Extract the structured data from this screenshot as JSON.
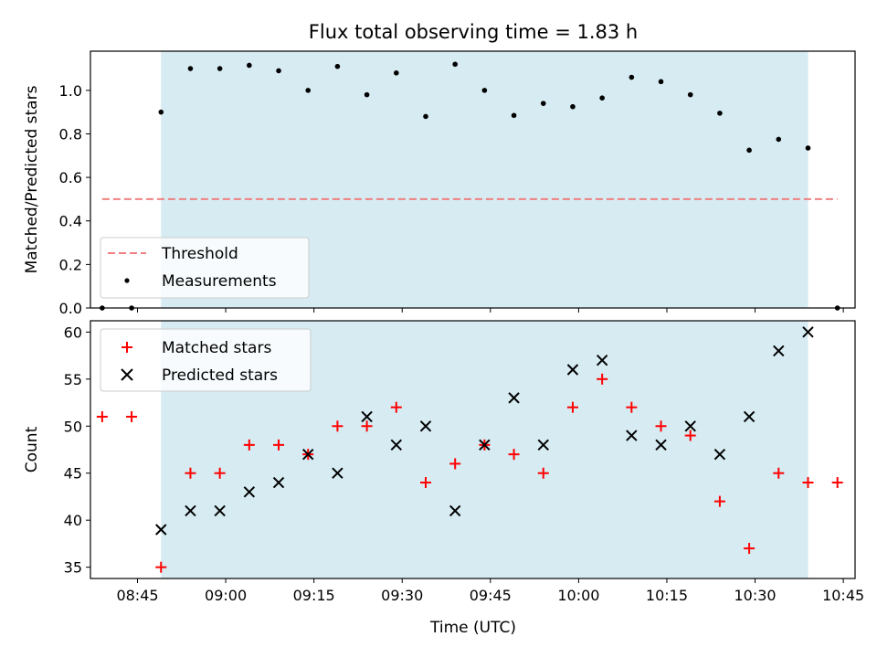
{
  "title": "Flux total observing time = 1.83 h",
  "colors": {
    "shade": "#add8e6",
    "threshold": "#f08080",
    "measurement": "#000000",
    "matched": "#ff0000",
    "predicted": "#000000"
  },
  "chart_data": [
    {
      "type": "scatter",
      "panel": "top",
      "xlabel": "",
      "ylabel": "Matched/Predicted stars",
      "x_range": [
        "08:37",
        "10:47"
      ],
      "ylim": [
        0,
        1.18
      ],
      "y_ticks": [
        0.0,
        0.2,
        0.4,
        0.6,
        0.8,
        1.0
      ],
      "x_ticks": [
        "08:45",
        "09:00",
        "09:15",
        "09:30",
        "09:45",
        "10:00",
        "10:15",
        "10:30",
        "10:45"
      ],
      "shaded_span": [
        "08:49",
        "10:39"
      ],
      "legend_position": "lower-left",
      "legend": {
        "threshold": "Threshold",
        "measurements": "Measurements"
      },
      "threshold": {
        "name": "Threshold",
        "x": [
          "08:39",
          "10:44"
        ],
        "value": 0.5
      },
      "x": [
        "08:39",
        "08:44",
        "08:49",
        "08:54",
        "08:59",
        "09:04",
        "09:09",
        "09:14",
        "09:19",
        "09:24",
        "09:29",
        "09:34",
        "09:39",
        "09:44",
        "09:49",
        "09:54",
        "09:59",
        "10:04",
        "10:09",
        "10:14",
        "10:19",
        "10:24",
        "10:29",
        "10:34",
        "10:39",
        "10:44"
      ],
      "series": [
        {
          "name": "Measurements",
          "values": [
            0.0,
            0.0,
            0.9,
            1.1,
            1.1,
            1.115,
            1.09,
            1.0,
            1.11,
            0.98,
            1.08,
            0.88,
            1.12,
            1.0,
            0.885,
            0.94,
            0.925,
            0.965,
            1.06,
            1.04,
            0.98,
            0.895,
            0.725,
            0.775,
            0.735,
            0.0
          ]
        }
      ]
    },
    {
      "type": "scatter",
      "panel": "bottom",
      "xlabel": "Time (UTC)",
      "ylabel": "Count",
      "x_range": [
        "08:37",
        "10:47"
      ],
      "ylim": [
        33.8,
        61.2
      ],
      "y_ticks": [
        35,
        40,
        45,
        50,
        55,
        60
      ],
      "x_ticks": [
        "08:45",
        "09:00",
        "09:15",
        "09:30",
        "09:45",
        "10:00",
        "10:15",
        "10:30",
        "10:45"
      ],
      "shaded_span": [
        "08:49",
        "10:39"
      ],
      "legend_position": "upper-left",
      "legend": {
        "matched": "Matched stars",
        "predicted": "Predicted stars"
      },
      "matched": {
        "name": "Matched stars",
        "x": [
          "08:39",
          "08:44",
          "08:49",
          "08:54",
          "08:59",
          "09:04",
          "09:09",
          "09:14",
          "09:19",
          "09:24",
          "09:29",
          "09:34",
          "09:39",
          "09:44",
          "09:49",
          "09:54",
          "09:59",
          "10:04",
          "10:09",
          "10:14",
          "10:19",
          "10:24",
          "10:29",
          "10:34",
          "10:39",
          "10:44"
        ],
        "values": [
          51,
          51,
          35,
          45,
          45,
          48,
          48,
          47,
          50,
          50,
          52,
          44,
          46,
          48,
          47,
          45,
          52,
          55,
          52,
          50,
          49,
          42,
          37,
          45,
          44,
          44
        ]
      },
      "predicted": {
        "name": "Predicted stars",
        "x": [
          "08:49",
          "08:54",
          "08:59",
          "09:04",
          "09:09",
          "09:14",
          "09:19",
          "09:24",
          "09:29",
          "09:34",
          "09:39",
          "09:44",
          "09:49",
          "09:54",
          "09:59",
          "10:04",
          "10:09",
          "10:14",
          "10:19",
          "10:24",
          "10:29",
          "10:34",
          "10:39"
        ],
        "values": [
          39,
          41,
          41,
          43,
          44,
          47,
          45,
          51,
          48,
          50,
          41,
          48,
          53,
          48,
          56,
          57,
          49,
          48,
          50,
          47,
          51,
          58,
          60
        ]
      }
    }
  ]
}
